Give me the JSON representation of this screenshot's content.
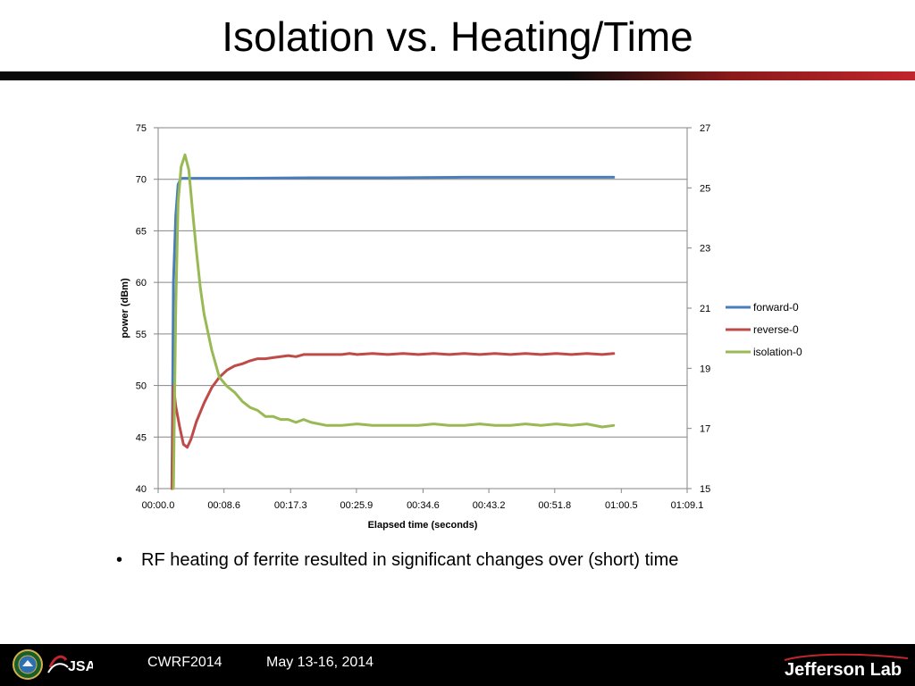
{
  "slide": {
    "title": "Isolation vs. Heating/Time",
    "bullet": "RF heating of ferrite resulted in significant changes over (short) time"
  },
  "footer": {
    "conference": "CWRF2014",
    "dates": "May 13-16, 2014",
    "jsa_text": "JSA",
    "lab_name": "Jefferson Lab"
  },
  "colors": {
    "forward": "#4a7ebb",
    "reverse": "#be4b48",
    "isolation": "#98b954",
    "gridline": "#868686",
    "title_bar_dark": "#0a0a0a",
    "title_bar_red": "#c0262c"
  },
  "chart_data": {
    "type": "line",
    "xlabel": "Elapsed time (seconds)",
    "ylabel": "power (dBm)",
    "xlim": [
      0,
      69.1
    ],
    "ylim": [
      40,
      75
    ],
    "y2lim": [
      15,
      27
    ],
    "grid": true,
    "legend_position": "right",
    "x_tick_labels": [
      "00:00.0",
      "00:08.6",
      "00:17.3",
      "00:25.9",
      "00:34.6",
      "00:43.2",
      "00:51.8",
      "01:00.5",
      "01:09.1"
    ],
    "x_tick_values": [
      0,
      8.6,
      17.3,
      25.9,
      34.6,
      43.2,
      51.8,
      60.5,
      69.1
    ],
    "y_tick_labels": [
      "40",
      "45",
      "50",
      "55",
      "60",
      "65",
      "70",
      "75"
    ],
    "y_tick_values": [
      40,
      45,
      50,
      55,
      60,
      65,
      70,
      75
    ],
    "y2_tick_labels": [
      "15",
      "17",
      "19",
      "21",
      "23",
      "25",
      "27"
    ],
    "y2_tick_values": [
      15,
      17,
      19,
      21,
      23,
      25,
      27
    ],
    "series": [
      {
        "name": "forward-0",
        "axis": "left",
        "x": [
          1.8,
          2.0,
          2.3,
          2.6,
          3.0,
          4.0,
          10,
          20,
          30,
          40,
          50,
          59.5
        ],
        "y": [
          40,
          60,
          66.5,
          69.5,
          70.1,
          70.1,
          70.1,
          70.15,
          70.15,
          70.2,
          70.2,
          70.2
        ]
      },
      {
        "name": "reverse-0",
        "axis": "left",
        "x": [
          1.8,
          2.0,
          2.3,
          2.8,
          3.3,
          3.8,
          4.3,
          5.0,
          6.0,
          7.0,
          8.0,
          9.0,
          10.0,
          11.0,
          12.0,
          13.0,
          14.0,
          15.0,
          16.0,
          17.0,
          18.0,
          19.0,
          20.0,
          22.0,
          24.0,
          25.0,
          26.0,
          28.0,
          30.0,
          32.0,
          34.0,
          36.0,
          38.0,
          40.0,
          42.0,
          44.0,
          46.0,
          48.0,
          50.0,
          52.0,
          54.0,
          56.0,
          58.0,
          59.5
        ],
        "y": [
          40,
          50,
          48.0,
          46.0,
          44.3,
          44.0,
          44.8,
          46.5,
          48.3,
          49.8,
          50.8,
          51.5,
          51.9,
          52.1,
          52.4,
          52.6,
          52.6,
          52.7,
          52.8,
          52.9,
          52.8,
          53.0,
          53.0,
          53.0,
          53.0,
          53.1,
          53.0,
          53.1,
          53.0,
          53.1,
          53.0,
          53.1,
          53.0,
          53.1,
          53.0,
          53.1,
          53.0,
          53.1,
          53.0,
          53.1,
          53.0,
          53.1,
          53.0,
          53.1
        ]
      },
      {
        "name": "isolation-0",
        "axis": "right",
        "x": [
          2.0,
          2.3,
          2.6,
          3.0,
          3.5,
          4.0,
          4.5,
          5.0,
          5.5,
          6.0,
          7.0,
          8.0,
          9.0,
          10.0,
          11.0,
          12.0,
          13.0,
          14.0,
          15.0,
          16.0,
          17.0,
          18.0,
          19.0,
          20.0,
          22.0,
          24.0,
          26.0,
          28.0,
          30.0,
          32.0,
          34.0,
          36.0,
          38.0,
          40.0,
          42.0,
          44.0,
          46.0,
          48.0,
          50.0,
          52.0,
          54.0,
          56.0,
          58.0,
          59.5
        ],
        "y": [
          15,
          21.0,
          24.5,
          25.7,
          26.1,
          25.6,
          24.2,
          22.9,
          21.7,
          20.8,
          19.6,
          18.7,
          18.4,
          18.2,
          17.9,
          17.7,
          17.6,
          17.4,
          17.4,
          17.3,
          17.3,
          17.2,
          17.3,
          17.2,
          17.1,
          17.1,
          17.15,
          17.1,
          17.1,
          17.1,
          17.1,
          17.15,
          17.1,
          17.1,
          17.15,
          17.1,
          17.1,
          17.15,
          17.1,
          17.15,
          17.1,
          17.15,
          17.05,
          17.1
        ]
      }
    ]
  }
}
